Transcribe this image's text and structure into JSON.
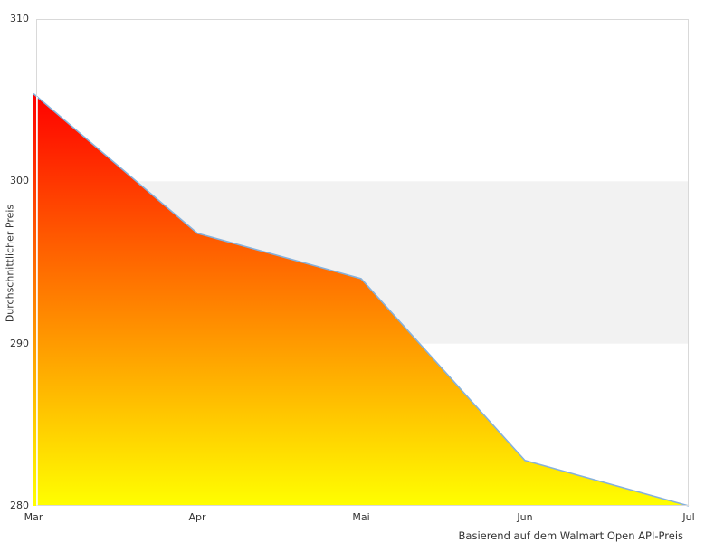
{
  "chart_data": {
    "type": "area",
    "x": [
      "Mar",
      "Apr",
      "Mai",
      "Jun",
      "Jul"
    ],
    "values": [
      305.4,
      296.8,
      294.0,
      282.8,
      280.0
    ],
    "title": "",
    "xlabel": "",
    "ylabel": "Durchschnittlicher Preis",
    "caption": "Basierend auf dem Walmart Open API-Preis",
    "ylim": [
      280,
      310
    ],
    "yticks": [
      310,
      300,
      290,
      280
    ],
    "band": {
      "from": 290,
      "to": 300,
      "color": "#f2f2f2"
    },
    "colors": {
      "gradient_top": "#ff0000",
      "gradient_bottom": "#ffff00",
      "line": "#85b1dc",
      "border": "#d9d9d9",
      "axis_overlay": "#ffffff",
      "text": "#333333",
      "background": "#ffffff"
    },
    "legend": "none",
    "grid": "off"
  }
}
